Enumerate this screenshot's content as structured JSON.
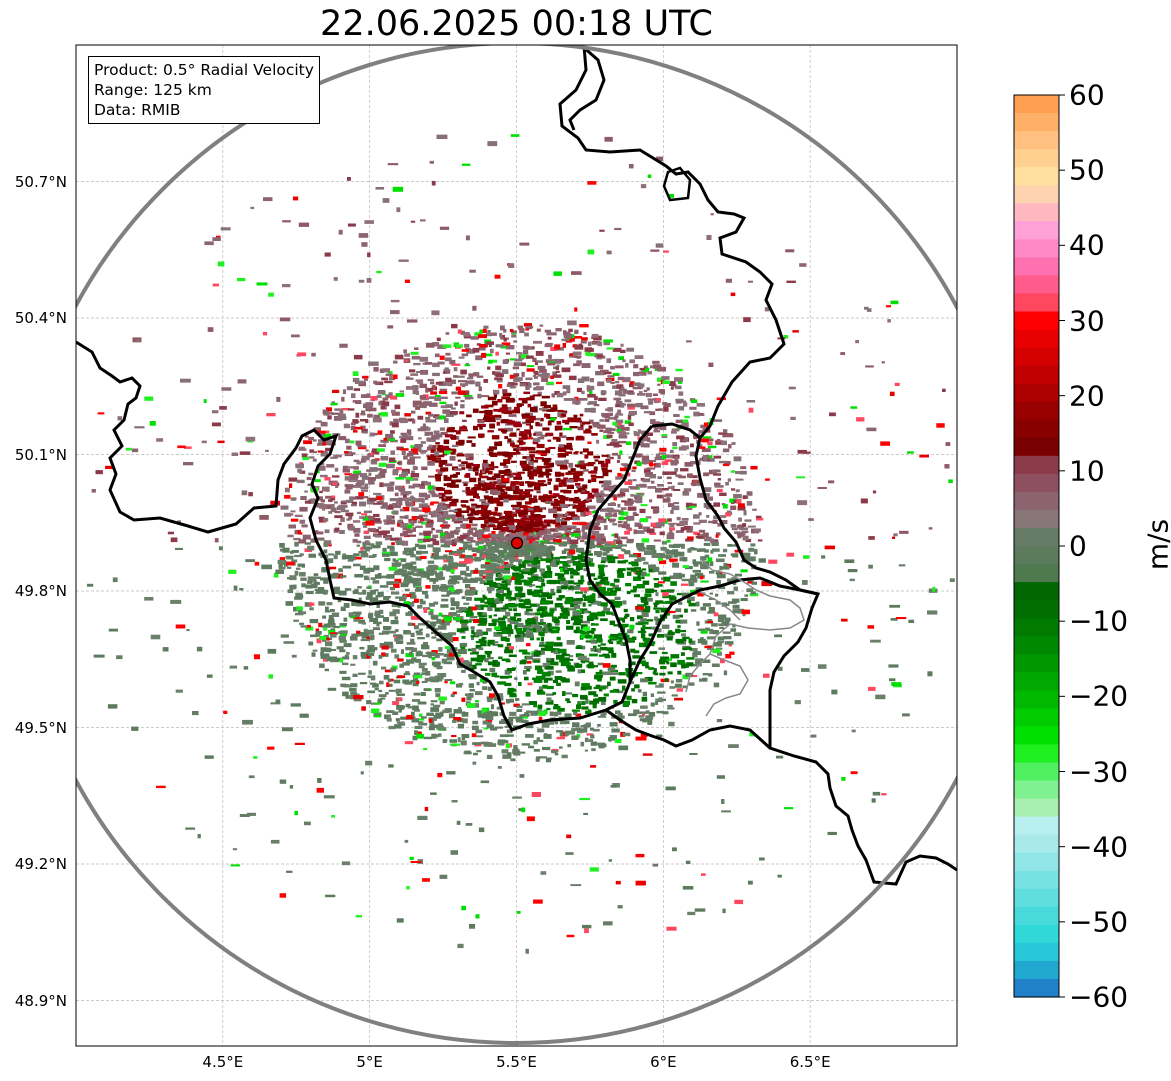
{
  "title": "22.06.2025 00:18 UTC",
  "info_box": {
    "product": "Product: 0.5° Radial Velocity",
    "range": "Range: 125 km",
    "data": "Data: RMIB"
  },
  "map": {
    "lon_range": [
      4.0,
      7.0
    ],
    "lat_range": [
      48.8,
      51.0
    ],
    "radar_site": {
      "lon": 5.5,
      "lat": 49.91
    },
    "range_ring_km": 125,
    "lat_ticks": [
      "50.7°N",
      "50.4°N",
      "50.1°N",
      "49.8°N",
      "49.5°N",
      "49.2°N",
      "48.9°N"
    ],
    "lat_tick_values": [
      50.7,
      50.4,
      50.1,
      49.8,
      49.5,
      49.2,
      48.9
    ],
    "lon_ticks": [
      "4.5°E",
      "5°E",
      "5.5°E",
      "6°E",
      "6.5°E"
    ],
    "lon_tick_values": [
      4.5,
      5.0,
      5.5,
      6.0,
      6.5
    ],
    "gridlines": true
  },
  "colorbar": {
    "label": "m/s",
    "min": -60,
    "max": 60,
    "ticks": [
      "60",
      "50",
      "40",
      "30",
      "20",
      "10",
      "0",
      "−10",
      "−20",
      "−30",
      "−40",
      "−50",
      "−60"
    ],
    "tick_values": [
      60,
      50,
      40,
      30,
      20,
      10,
      0,
      -10,
      -20,
      -30,
      -40,
      -50,
      -60
    ],
    "colors_top_to_bottom": [
      "#ffa050",
      "#ffb068",
      "#ffc080",
      "#ffd090",
      "#ffe0a0",
      "#ffd2b0",
      "#ffb8c0",
      "#ffa0d8",
      "#ff88c8",
      "#ff70b0",
      "#ff5c8c",
      "#ff4860",
      "#ff0000",
      "#e80000",
      "#d40000",
      "#c00000",
      "#ac0000",
      "#980000",
      "#880000",
      "#780000",
      "#8a3a48",
      "#8e5060",
      "#8c6470",
      "#887678",
      "#667c66",
      "#5c7a5c",
      "#4f7a4f",
      "#006600",
      "#006e00",
      "#007a00",
      "#008800",
      "#009800",
      "#00a800",
      "#00b800",
      "#00cc00",
      "#00e000",
      "#20f020",
      "#50f060",
      "#80f090",
      "#a8f0b0",
      "#b8f0f0",
      "#a8eaea",
      "#90e6e6",
      "#78e2e2",
      "#60dede",
      "#48dada",
      "#30d8d8",
      "#28c8d8",
      "#20a8d0",
      "#2080c8"
    ]
  }
}
